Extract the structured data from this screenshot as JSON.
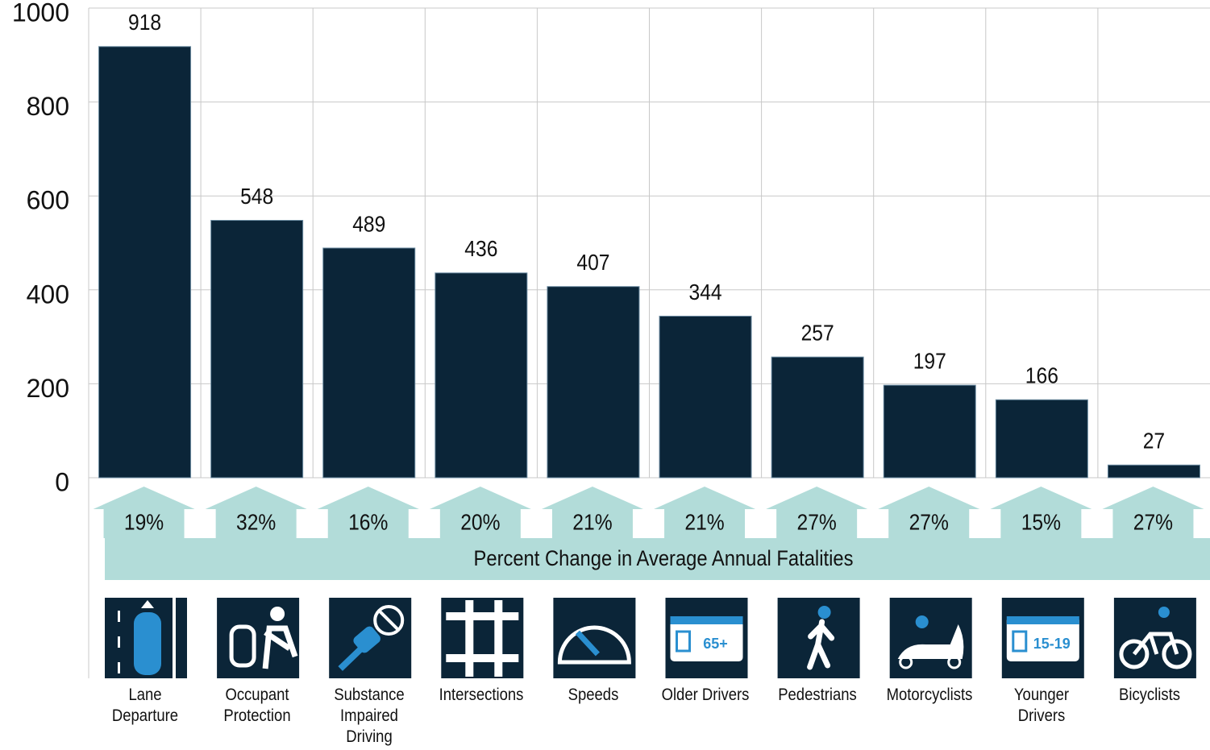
{
  "chart_data": {
    "type": "bar",
    "categories": [
      "Lane Departure",
      "Occupant Protection",
      "Substance Impaired Driving",
      "Intersections",
      "Speeds",
      "Older Drivers",
      "Pedestrians",
      "Motorcyclists",
      "Younger Drivers",
      "Bicyclists"
    ],
    "values": [
      918,
      548,
      489,
      436,
      407,
      344,
      257,
      197,
      166,
      27
    ],
    "color": "#0b2538",
    "ylim": [
      0,
      1000
    ],
    "yticks": [
      0,
      200,
      400,
      600,
      800,
      1000
    ],
    "grid": true,
    "percent_change": {
      "title": "Percent Change in Average Annual Fatalities",
      "values": [
        19,
        32,
        16,
        20,
        21,
        21,
        27,
        27,
        15,
        27
      ],
      "value_labels": [
        "19%",
        "32%",
        "16%",
        "20%",
        "21%",
        "21%",
        "27%",
        "27%",
        "15%",
        "27%"
      ],
      "color": "#b2dcd9"
    },
    "icon_labels": {
      "older": "65+",
      "younger": "15-19"
    }
  }
}
